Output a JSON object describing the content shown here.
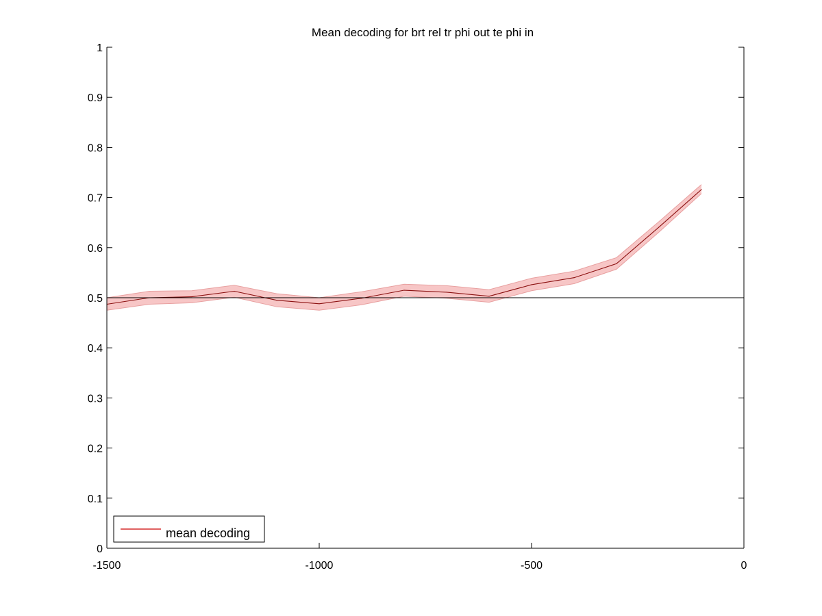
{
  "chart_data": {
    "type": "line",
    "title": "Mean decoding for brt rel tr phi out te phi in",
    "xlabel": "",
    "ylabel": "",
    "xlim": [
      -1500,
      0
    ],
    "ylim": [
      0,
      1
    ],
    "xticks": [
      -1500,
      -1000,
      -500,
      0
    ],
    "xtick_labels": [
      "-1500",
      "-1000",
      "-500",
      "0"
    ],
    "yticks": [
      0,
      0.1,
      0.2,
      0.3,
      0.4,
      0.5,
      0.6,
      0.7,
      0.8,
      0.9,
      1
    ],
    "ytick_labels": [
      "0",
      "0.1",
      "0.2",
      "0.3",
      "0.4",
      "0.5",
      "0.6",
      "0.7",
      "0.8",
      "0.9",
      "1"
    ],
    "grid": false,
    "legend_position": "bottom-left",
    "reference_line": {
      "y": 0.5,
      "color": "#000000"
    },
    "series": [
      {
        "name": "mean decoding",
        "color": "#cc0000",
        "band_color": "#f7c6c6",
        "x": [
          -1500,
          -1400,
          -1300,
          -1200,
          -1100,
          -1000,
          -900,
          -800,
          -700,
          -600,
          -500,
          -400,
          -300,
          -200,
          -100
        ],
        "values": [
          0.487,
          0.5,
          0.502,
          0.513,
          0.495,
          0.488,
          0.499,
          0.515,
          0.511,
          0.503,
          0.526,
          0.54,
          0.568,
          0.641,
          0.716
        ],
        "lower": [
          0.475,
          0.487,
          0.49,
          0.501,
          0.482,
          0.475,
          0.486,
          0.503,
          0.499,
          0.491,
          0.514,
          0.528,
          0.557,
          0.631,
          0.708
        ],
        "upper": [
          0.5,
          0.513,
          0.514,
          0.525,
          0.508,
          0.5,
          0.512,
          0.527,
          0.524,
          0.516,
          0.539,
          0.553,
          0.58,
          0.652,
          0.726
        ]
      }
    ]
  }
}
